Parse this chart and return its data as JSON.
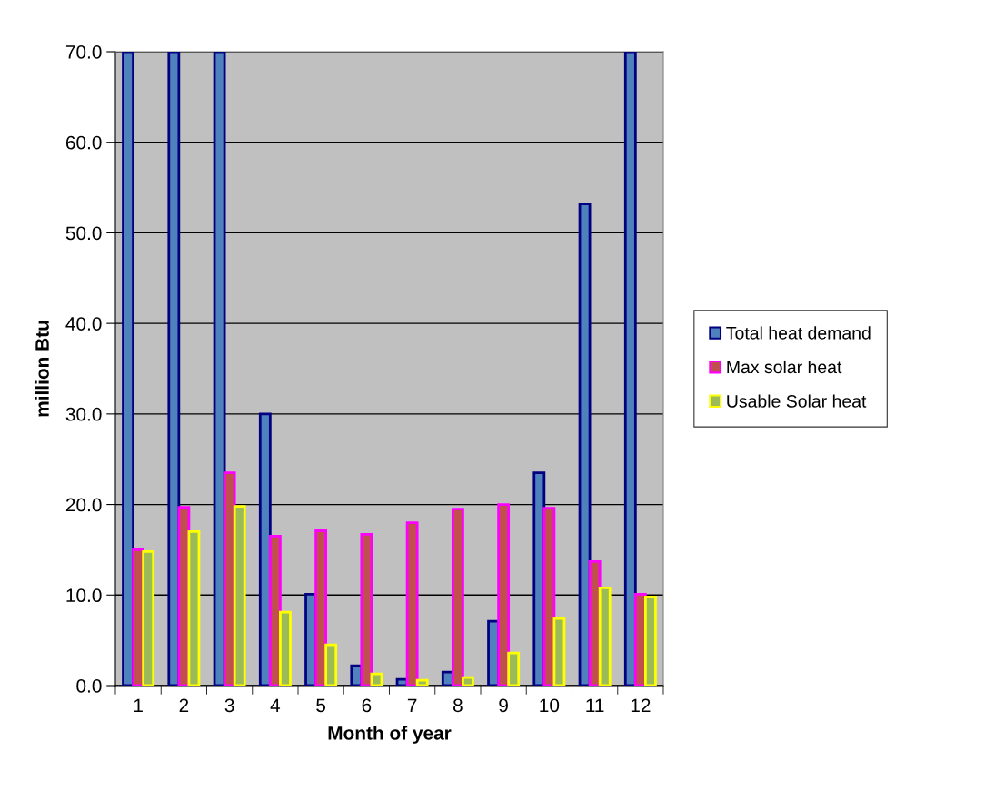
{
  "chart_data": {
    "type": "bar",
    "xlabel": "Month of year",
    "ylabel": "million Btu",
    "categories": [
      "1",
      "2",
      "3",
      "4",
      "5",
      "6",
      "7",
      "8",
      "9",
      "10",
      "11",
      "12"
    ],
    "series": [
      {
        "name": "Total heat demand",
        "color": "#4f81bd",
        "values": [
          70.0,
          70.0,
          70.0,
          30.0,
          10.1,
          2.2,
          0.7,
          1.5,
          7.1,
          23.5,
          53.2,
          70.0
        ]
      },
      {
        "name": "Max solar heat",
        "color": "#c0504d",
        "values": [
          15.0,
          19.7,
          23.5,
          16.5,
          17.1,
          16.7,
          18.0,
          19.5,
          20.0,
          19.6,
          13.7,
          10.1
        ]
      },
      {
        "name": "Usable Solar heat",
        "color": "#9bbb59",
        "values": [
          14.8,
          17.0,
          19.8,
          8.1,
          4.5,
          1.3,
          0.6,
          0.9,
          3.6,
          7.4,
          10.8,
          9.8
        ]
      }
    ],
    "ylim": [
      0,
      70
    ],
    "yticks": [
      {
        "value": 0,
        "label": "0.0"
      },
      {
        "value": 10,
        "label": "10.0"
      },
      {
        "value": 20,
        "label": "20.0"
      },
      {
        "value": 30,
        "label": "30.0"
      },
      {
        "value": 40,
        "label": "40.0"
      },
      {
        "value": 50,
        "label": "50.0"
      },
      {
        "value": 60,
        "label": "60.0"
      },
      {
        "value": 70,
        "label": "70.0"
      }
    ],
    "grid": "y",
    "legend": "right"
  }
}
